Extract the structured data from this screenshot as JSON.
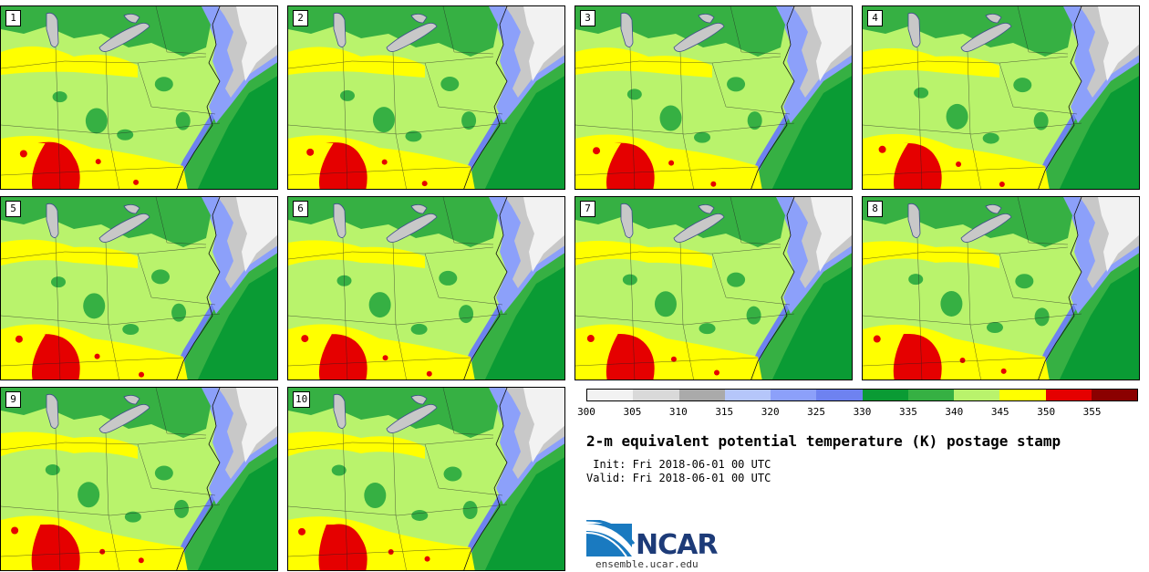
{
  "panels": [
    {
      "label": "1"
    },
    {
      "label": "2"
    },
    {
      "label": "3"
    },
    {
      "label": "4"
    },
    {
      "label": "5"
    },
    {
      "label": "6"
    },
    {
      "label": "7"
    },
    {
      "label": "8"
    },
    {
      "label": "9"
    },
    {
      "label": "10"
    }
  ],
  "colorbar": {
    "colors": [
      "#f2f2f2",
      "#d9d9d9",
      "#aaaaaa",
      "#b5c6fa",
      "#8ca0fa",
      "#6e82f0",
      "#0a9b34",
      "#36b043",
      "#b9f36c",
      "#ffff00",
      "#e50000",
      "#8b0000"
    ],
    "ticks": [
      "300",
      "305",
      "310",
      "315",
      "320",
      "325",
      "330",
      "335",
      "340",
      "345",
      "350",
      "355"
    ]
  },
  "title": "2-m equivalent potential temperature (K) postage stamp",
  "init": " Init: Fri 2018-06-01 00 UTC",
  "valid": "Valid: Fri 2018-06-01 00 UTC",
  "logo": {
    "text": "NCAR",
    "brand_color": "#1d3b78",
    "icon": "ncar-logo-icon"
  },
  "site": "ensemble.ucar.edu",
  "map_colors": {
    "ocean_dark": "#0a9b34",
    "ocean_mid": "#36b043",
    "land_base": "#b9f36c",
    "green_patch": "#36b043",
    "yellow": "#ffff00",
    "red": "#e50000",
    "lake": "#c8c8c8",
    "cold_white": "#f2f2f2",
    "cold_gray": "#c8c8c8",
    "cold_blue": "#8ca0fa",
    "cold_purple": "#6e82f0"
  }
}
